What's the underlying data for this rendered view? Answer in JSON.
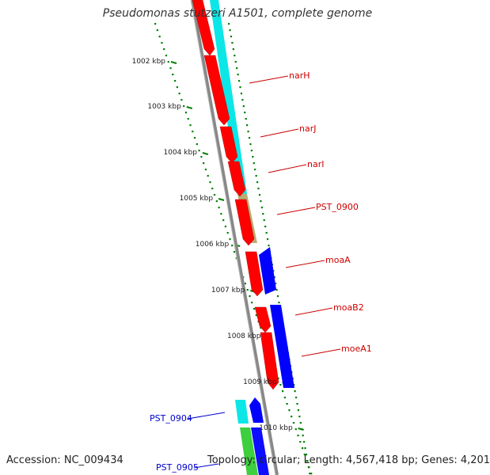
{
  "title": "Pseudomonas stutzeri A1501, complete genome",
  "footer": {
    "accession": "Accession: NC_009434",
    "stats": "Topology: circular; Length: 4,567,418 bp; Genes: 4,201"
  },
  "colors": {
    "backbone": "#888888",
    "forward_cds": "#ff0000",
    "reverse_cds": "#0000ff",
    "label_red": "#cc0000",
    "label_blue": "#0000cc",
    "tick_green": "#008000",
    "cyan": "#00e5e5",
    "tan": "#b5a96b",
    "green": "#33cc33"
  },
  "ticks": [
    {
      "label": "1002 kbp"
    },
    {
      "label": "1003 kbp"
    },
    {
      "label": "1004 kbp"
    },
    {
      "label": "1005 kbp"
    },
    {
      "label": "1006 kbp"
    },
    {
      "label": "1007 kbp"
    },
    {
      "label": "1008 kbp"
    },
    {
      "label": "1009 kbp"
    },
    {
      "label": "1010 kbp"
    }
  ],
  "genes": [
    {
      "name": "narH"
    },
    {
      "name": "narJ"
    },
    {
      "name": "narI"
    },
    {
      "name": "PST_0900"
    },
    {
      "name": "moaA"
    },
    {
      "name": "moaB2"
    },
    {
      "name": "moeA1"
    },
    {
      "name": "PST_0904"
    },
    {
      "name": "PST_0905"
    }
  ]
}
